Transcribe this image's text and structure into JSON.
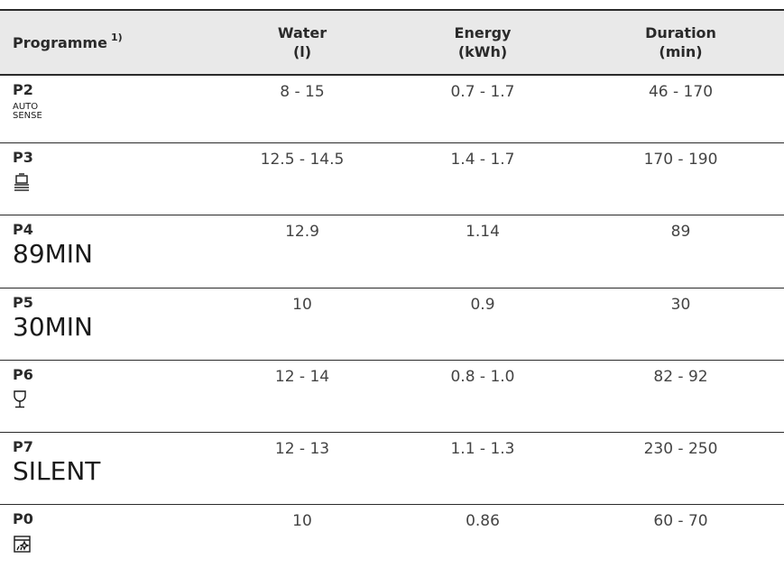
{
  "header": {
    "programme": "Programme",
    "footnote": "1)",
    "water": [
      "Water",
      "(l)"
    ],
    "energy": [
      "Energy",
      "(kWh)"
    ],
    "duration": [
      "Duration",
      "(min)"
    ]
  },
  "rows": [
    {
      "code": "P2",
      "label": [
        "AUTO",
        "SENSE"
      ],
      "water": "8 - 15",
      "energy": "0.7 - 1.7",
      "duration": "46 - 170"
    },
    {
      "code": "P3",
      "icon": "pots-pans-icon",
      "water": "12.5 - 14.5",
      "energy": "1.4 - 1.7",
      "duration": "170 - 190"
    },
    {
      "code": "P4",
      "big": "89MIN",
      "water": "12.9",
      "energy": "1.14",
      "duration": "89"
    },
    {
      "code": "P5",
      "big": "30MIN",
      "water": "10",
      "energy": "0.9",
      "duration": "30"
    },
    {
      "code": "P6",
      "icon": "glass-icon",
      "water": "12 - 14",
      "energy": "0.8 - 1.0",
      "duration": "82 - 92"
    },
    {
      "code": "P7",
      "big": "SILENT",
      "water": "12 - 13",
      "energy": "1.1 - 1.3",
      "duration": "230 - 250"
    },
    {
      "code": "P0",
      "icon": "machine-care-icon",
      "water": "10",
      "energy": "0.86",
      "duration": "60 - 70"
    }
  ]
}
